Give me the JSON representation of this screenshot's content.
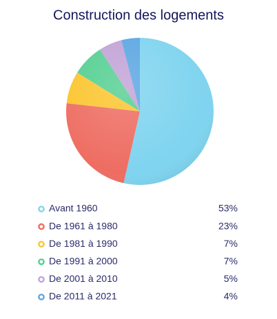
{
  "chart_data": {
    "type": "pie",
    "title": "Construction des logements",
    "categories": [
      "Avant 1960",
      "De 1961 à 1980",
      "De 1981 à 1990",
      "De 1991 à 2000",
      "De 2001 à 2010",
      "De 2011 à 2021"
    ],
    "values": [
      53,
      23,
      7,
      7,
      5,
      4
    ],
    "value_labels": [
      "53%",
      "23%",
      "7%",
      "7%",
      "5%",
      "4%"
    ],
    "colors": [
      "#7fd4ef",
      "#ee6d62",
      "#fcc52f",
      "#55cf92",
      "#c2a3d6",
      "#5ca6e2"
    ]
  }
}
